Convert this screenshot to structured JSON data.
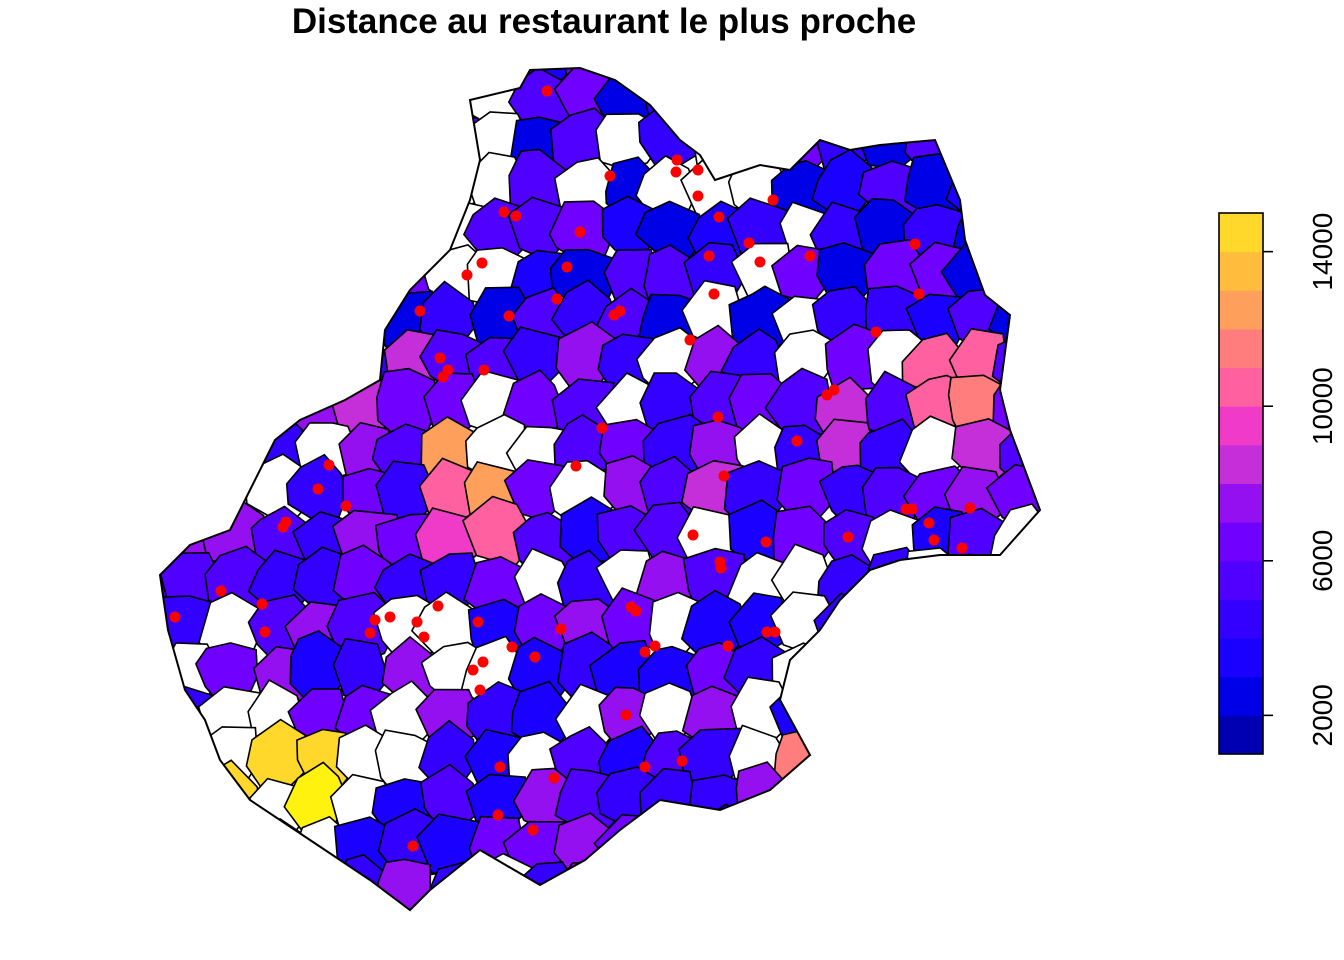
{
  "title": "Distance au restaurant le plus proche",
  "legend": {
    "breaks": [
      1000,
      2000,
      3000,
      4000,
      5000,
      6000,
      7000,
      8000,
      9000,
      10000,
      11000,
      12000,
      13000,
      14000,
      15000
    ],
    "colors": [
      "#0000B3",
      "#0000E6",
      "#1A00FF",
      "#3300FF",
      "#5000FF",
      "#7000FF",
      "#9410F0",
      "#C42FD9",
      "#F03AC8",
      "#FF60A0",
      "#FF7D7D",
      "#FF9F5C",
      "#FFBC3D",
      "#FFD82B",
      "#FFF20F"
    ],
    "tick_values": [
      2000,
      6000,
      10000,
      14000
    ],
    "tick_labels": [
      "2000",
      "6000",
      "10000",
      "14000"
    ]
  },
  "icons": {
    "marker": "red-dot-restaurant"
  }
}
